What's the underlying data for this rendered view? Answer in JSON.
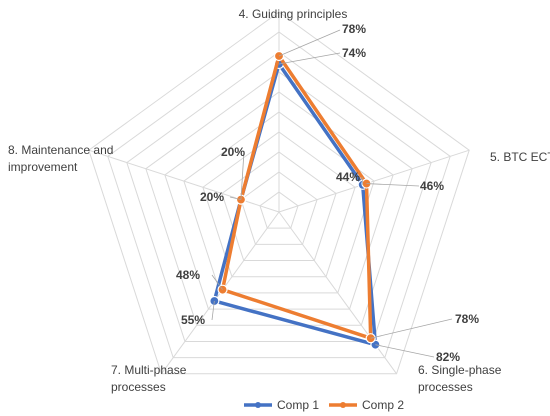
{
  "chart_data": {
    "type": "radar",
    "categories": [
      "4. Guiding principles",
      "5. BTC ECT",
      "6. Single-phase processes",
      "7. Multi-phase processes",
      "8. Maintenance and improvement"
    ],
    "range": [
      0,
      100
    ],
    "grid": true,
    "grid_rings": 10,
    "legend_position": "bottom",
    "series": [
      {
        "name": "Comp 1",
        "color": "#4472C4",
        "values": [
          74,
          44,
          82,
          55,
          20
        ],
        "labels": [
          "74%",
          "44%",
          "82%",
          "55%",
          "20%"
        ]
      },
      {
        "name": "Comp 2",
        "color": "#ED7D31",
        "values": [
          78,
          46,
          78,
          48,
          20
        ],
        "labels": [
          "78%",
          "46%",
          "78%",
          "48%",
          "20%"
        ]
      }
    ]
  }
}
